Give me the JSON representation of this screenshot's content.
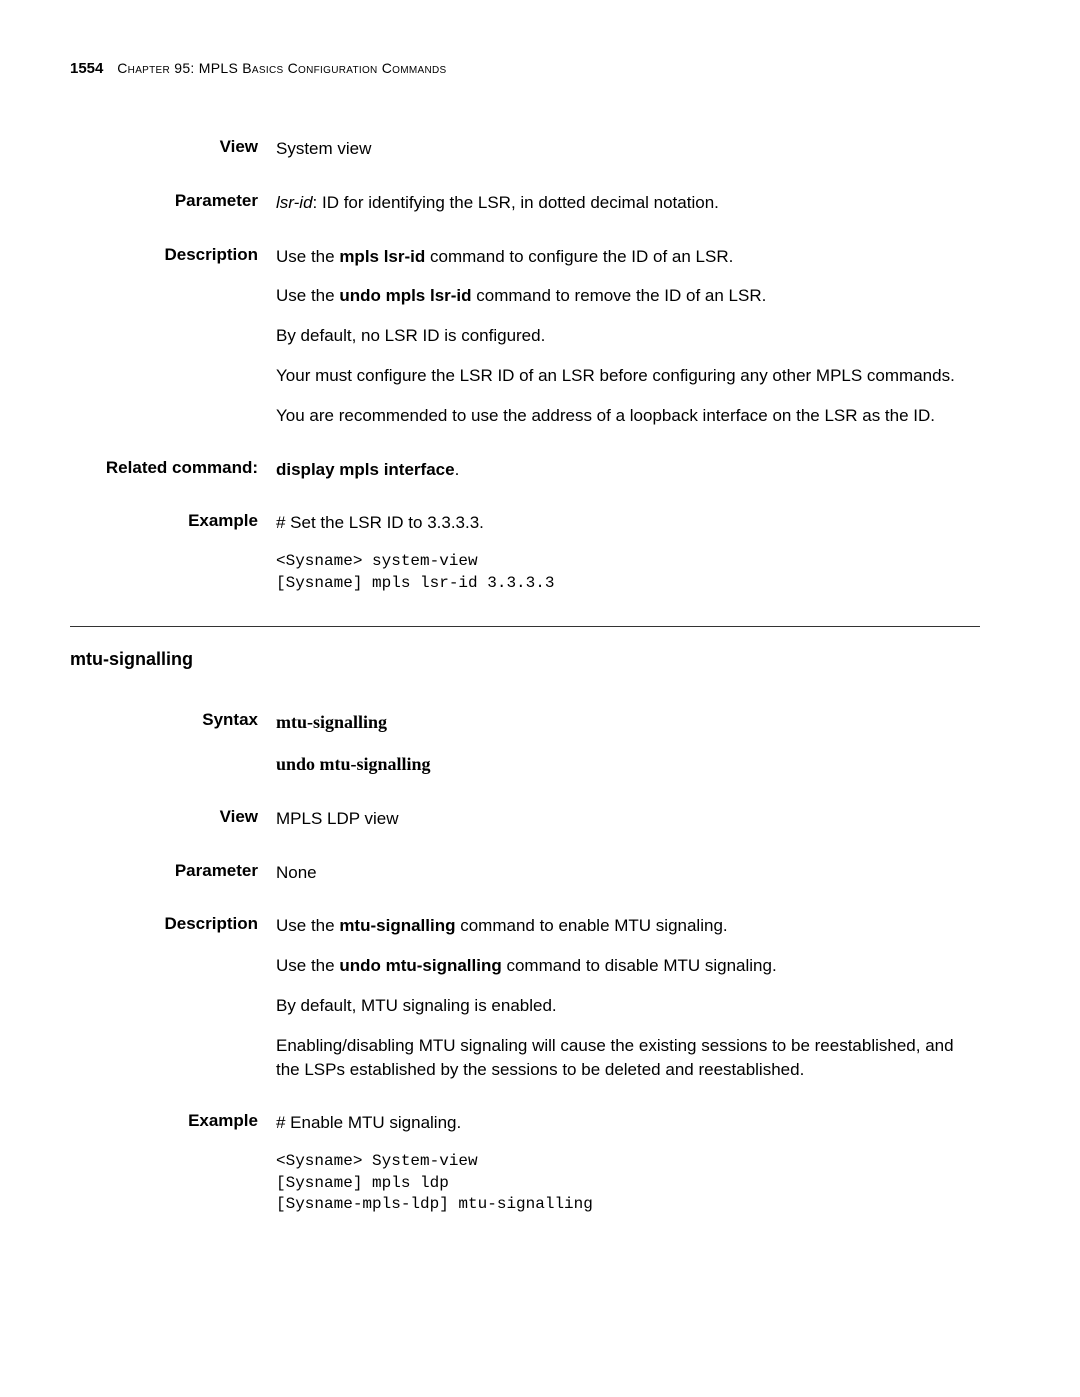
{
  "header": {
    "page_number": "1554",
    "chapter": "Chapter 95: MPLS Basics Configuration Commands"
  },
  "section1": {
    "view_label": "View",
    "view_text": "System view",
    "parameter_label": "Parameter",
    "parameter_text_italic": "lsr-id",
    "parameter_text_rest": ": ID for identifying the LSR, in dotted decimal notation.",
    "description_label": "Description",
    "desc_p1_pre": "Use the ",
    "desc_p1_bold": "mpls lsr-id",
    "desc_p1_post": " command to configure the ID of an LSR.",
    "desc_p2_pre": "Use the ",
    "desc_p2_bold": "undo mpls lsr-id",
    "desc_p2_post": " command to remove the ID of an LSR.",
    "desc_p3": "By default, no LSR ID is configured.",
    "desc_p4": "Your must configure the LSR ID of an LSR before configuring any other MPLS commands.",
    "desc_p5": "You are recommended to use the address of a loopback interface on the LSR as the ID.",
    "related_label": "Related command:",
    "related_text": "display mpls interface",
    "related_text_post": ".",
    "example_label": "Example",
    "example_intro": "# Set the LSR ID to 3.3.3.3.",
    "example_code": "<Sysname> system-view\n[Sysname] mpls lsr-id 3.3.3.3"
  },
  "section2": {
    "title": "mtu-signalling",
    "syntax_label": "Syntax",
    "syntax_line1": "mtu-signalling",
    "syntax_line2": "undo mtu-signalling",
    "view_label": "View",
    "view_text": "MPLS LDP view",
    "parameter_label": "Parameter",
    "parameter_text": "None",
    "description_label": "Description",
    "desc_p1_pre": "Use the ",
    "desc_p1_bold": "mtu-signalling",
    "desc_p1_post": " command to enable MTU signaling.",
    "desc_p2_pre": "Use the ",
    "desc_p2_bold": "undo mtu-signalling",
    "desc_p2_post": " command to disable MTU signaling.",
    "desc_p3": "By default, MTU signaling is enabled.",
    "desc_p4": "Enabling/disabling MTU signaling will cause the existing sessions to be reestablished, and the LSPs established by the sessions to be deleted and reestablished.",
    "example_label": "Example",
    "example_intro": "# Enable MTU signaling.",
    "example_code": "<Sysname> System-view\n[Sysname] mpls ldp\n[Sysname-mpls-ldp] mtu-signalling"
  }
}
